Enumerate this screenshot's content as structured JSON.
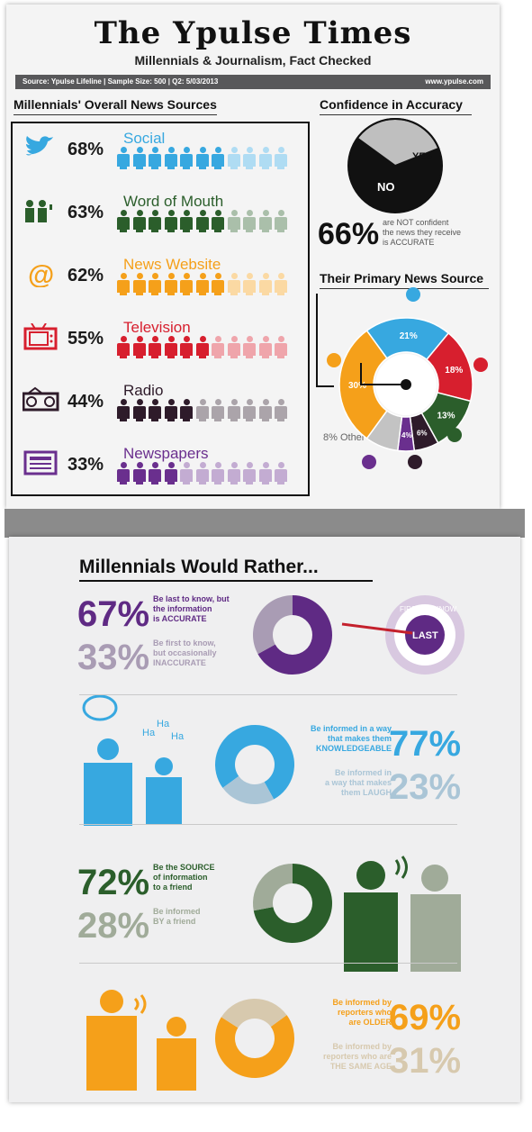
{
  "header": {
    "title": "The Ypulse Times",
    "subtitle": "Millennials & Journalism, Fact Checked",
    "source": "Source: Ypulse Lifeline | Sample Size: 500 | Q2: 5/03/2013",
    "url": "www.ypulse.com"
  },
  "sections": {
    "overall": "Millennials' Overall News Sources",
    "confidence": "Confidence in Accuracy",
    "primary": "Their Primary News Source",
    "rather": "Millennials Would Rather..."
  },
  "colors": {
    "social": "#37a8e0",
    "wom": "#2b5e2b",
    "web": "#f5a01a",
    "tv": "#d71f2e",
    "radio": "#2e1b2a",
    "paper": "#6a2f8e",
    "other": "#c3c3c3"
  },
  "chart_data": [
    {
      "type": "bar",
      "title": "Millennials' Overall News Sources",
      "categories": [
        "Social",
        "Word of Mouth",
        "News Website",
        "Television",
        "Radio",
        "Newspapers"
      ],
      "values": [
        68,
        63,
        62,
        55,
        44,
        33
      ],
      "labels": [
        "68%",
        "63%",
        "62%",
        "55%",
        "44%",
        "33%"
      ],
      "icons": [
        "twitter-icon",
        "people-talking-icon",
        "at-sign-icon",
        "tv-icon",
        "radio-icon",
        "newspaper-icon"
      ]
    },
    {
      "type": "pie",
      "title": "Confidence in Accuracy",
      "categories": [
        "NO",
        "YES"
      ],
      "values": [
        66,
        34
      ],
      "annotation_value": "66%",
      "annotation_text": [
        "are NOT confident",
        "the news they receive",
        "is ACCURATE"
      ]
    },
    {
      "type": "pie",
      "title": "Their Primary News Source",
      "categories": [
        "Social",
        "Television",
        "Word of Mouth",
        "Radio",
        "Newspapers",
        "Other",
        "News Website"
      ],
      "values": [
        21,
        18,
        13,
        6,
        4,
        8,
        30
      ],
      "labels": [
        "21%",
        "18%",
        "13%",
        "6%",
        "4%",
        "8% Other",
        "30%"
      ]
    },
    {
      "type": "pie",
      "title": "",
      "rows": [
        {
          "values": [
            67,
            33
          ],
          "labels": [
            "67%",
            "33%"
          ],
          "text_a": [
            "Be last to know, but",
            "the information",
            "is ACCURATE"
          ],
          "text_b": [
            "Be first to know,",
            "but occasionally",
            "INACCURATE"
          ],
          "colors": [
            "#5f2a84",
            "#a99cb4"
          ],
          "badge_ring": "FIRST TO KNOW",
          "badge_center": "LAST"
        },
        {
          "values": [
            77,
            23
          ],
          "labels": [
            "77%",
            "23%"
          ],
          "text_a": [
            "Be informed in a way",
            "that makes them",
            "KNOWLEDGEABLE"
          ],
          "text_b": [
            "Be informed in",
            "a way that makes",
            "them LAUGH"
          ],
          "colors": [
            "#37a8e0",
            "#aac5d6"
          ],
          "haha": [
            "Ha",
            "Ha",
            "Ha"
          ]
        },
        {
          "values": [
            72,
            28
          ],
          "labels": [
            "72%",
            "28%"
          ],
          "text_a": [
            "Be the SOURCE",
            "of information",
            "to a friend"
          ],
          "text_b": [
            "Be informed",
            "BY a friend"
          ],
          "colors": [
            "#2b5e2b",
            "#a0ab99"
          ]
        },
        {
          "values": [
            69,
            31
          ],
          "labels": [
            "69%",
            "31%"
          ],
          "text_a": [
            "Be informed by",
            "reporters who",
            "are OLDER"
          ],
          "text_b": [
            "Be informed by",
            "reporters who are",
            "THE SAME AGE"
          ],
          "colors": [
            "#f5a01a",
            "#d7c9ae"
          ]
        }
      ]
    }
  ]
}
